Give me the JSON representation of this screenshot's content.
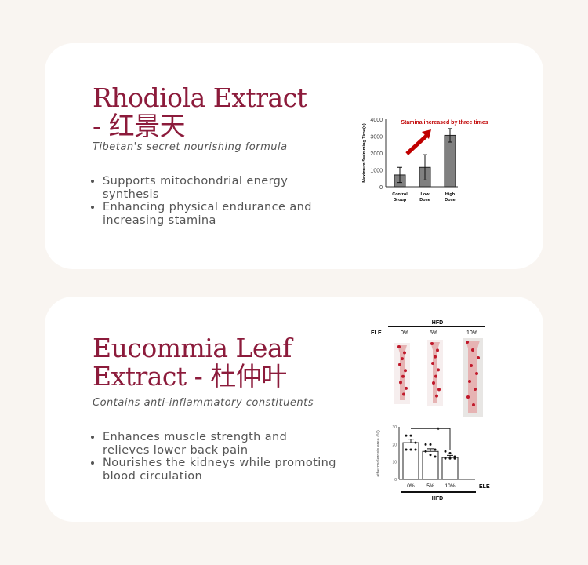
{
  "sections": [
    {
      "title_line1": "Rhodiola Extract",
      "title_line2": "- 红景天",
      "subtitle": "Tibetan's secret nourishing formula",
      "bullets": [
        "Supports mitochondrial energy synthesis",
        "Enhancing physical endurance and increasing stamina"
      ]
    },
    {
      "title_line1": "Eucommia Leaf",
      "title_line2": "Extract - 杜仲叶",
      "subtitle": "Contains anti-inflammatory constituents",
      "bullets": [
        "Enhances muscle strength and relieves lower back pain",
        "Nourishes the kidneys while promoting blood circulation"
      ]
    }
  ],
  "chart_data": [
    {
      "type": "bar",
      "ylabel": "Maximum Swimming Time(s)",
      "ylim": [
        0,
        4000
      ],
      "yticks": [
        "0",
        "1000",
        "2000",
        "3000",
        "4000"
      ],
      "categories": [
        "Control Group",
        "Low Dose",
        "High Dose"
      ],
      "values": [
        700,
        1150,
        3050
      ],
      "errors": [
        450,
        750,
        400
      ],
      "annotation": "Stamina increased by three times",
      "bar_color": "#808080",
      "annotation_color": "#c00000"
    },
    {
      "type": "bar",
      "ylabel": "atherosclerosis area (%)",
      "ylim": [
        0,
        30
      ],
      "yticks": [
        "0",
        "10",
        "20",
        "30"
      ],
      "categories": [
        "0%",
        "5%",
        "10%"
      ],
      "values": [
        21,
        16,
        12.5
      ],
      "errors": [
        2,
        1.5,
        1.2
      ],
      "points": [
        [
          25,
          25,
          21,
          17,
          17,
          17
        ],
        [
          20,
          20,
          17,
          16,
          14,
          13
        ],
        [
          16,
          15,
          13,
          12,
          12,
          12
        ]
      ],
      "xgroup_label": "ELE",
      "bottom_label": "HFD",
      "significance": "*",
      "image_panel": {
        "top_label": "HFD",
        "row_label": "ELE",
        "columns": [
          "0%",
          "5%",
          "10%"
        ]
      }
    }
  ]
}
